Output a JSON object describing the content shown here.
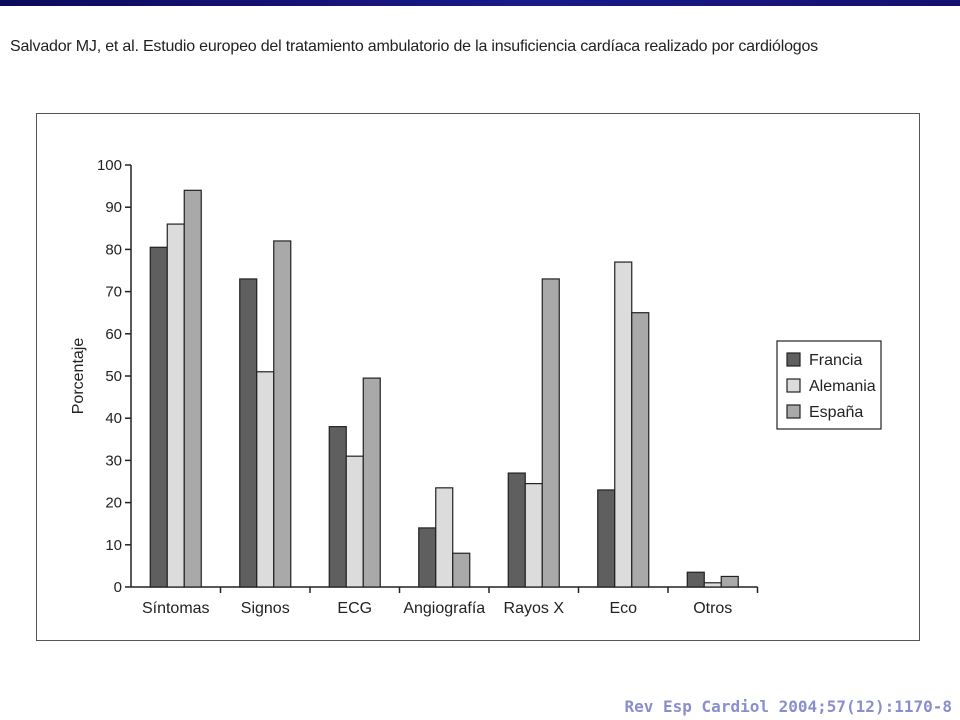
{
  "header": {
    "citation_text": "Salvador MJ, et al. Estudio europeo del tratamiento ambulatorio de la insuficiencia cardíaca realizado por cardiólogos"
  },
  "footer": {
    "reference": "Rev Esp Cardiol 2004;57(12):1170-8"
  },
  "colors": {
    "top_band": "#1a1a8a",
    "citation": "#8a8fcc"
  },
  "chart_data": {
    "type": "bar",
    "title": "",
    "xlabel": "",
    "ylabel": "Porcentaje",
    "ylim": [
      0,
      100
    ],
    "yticks": [
      0,
      10,
      20,
      30,
      40,
      50,
      60,
      70,
      80,
      90,
      100
    ],
    "grid": false,
    "legend_position": "right",
    "categories": [
      "Síntomas",
      "Signos",
      "ECG",
      "Angiografía",
      "Rayos X",
      "Eco",
      "Otros"
    ],
    "series": [
      {
        "name": "Francia",
        "color": "#5f5f5f",
        "values": [
          80.5,
          73,
          38,
          14,
          27,
          23,
          3.5
        ]
      },
      {
        "name": "Alemania",
        "color": "#dcdcdc",
        "values": [
          86,
          51,
          31,
          23.5,
          24.5,
          77,
          1
        ]
      },
      {
        "name": "España",
        "color": "#a9a9a9",
        "values": [
          94,
          82,
          49.5,
          8,
          73,
          65,
          2.5
        ]
      }
    ]
  }
}
